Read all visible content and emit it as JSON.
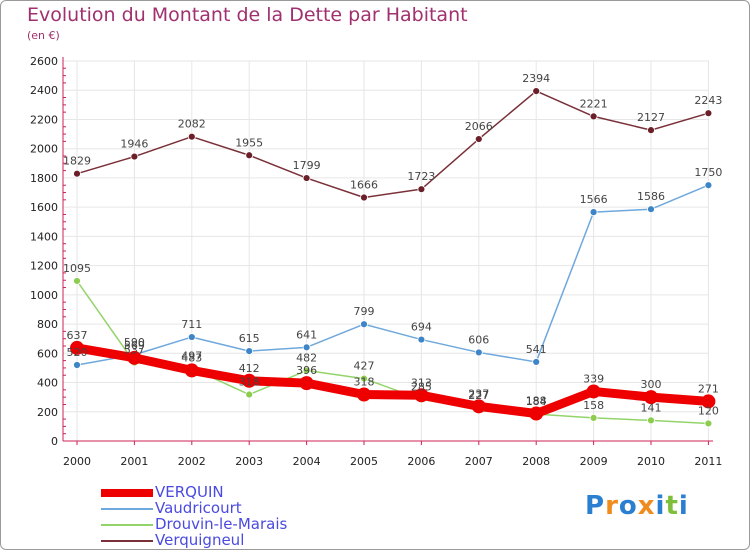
{
  "colors": {
    "title": "#a0306e",
    "axis": "#cc2255",
    "grid": "#e6e6e6",
    "legend_text": "#4a4ae0"
  },
  "logo": {
    "text": "Proxiti",
    "letters": [
      {
        "ch": "P",
        "color": "#2b7fd0"
      },
      {
        "ch": "r",
        "color": "#f08c1e"
      },
      {
        "ch": "o",
        "color": "#2b7fd0"
      },
      {
        "ch": "x",
        "color": "#f08c1e"
      },
      {
        "ch": "i",
        "color": "#2b7fd0"
      },
      {
        "ch": "t",
        "color": "#7dbf3a"
      },
      {
        "ch": "i",
        "color": "#2b7fd0"
      }
    ]
  },
  "chart_data": {
    "type": "line",
    "title": "Evolution du Montant de la Dette par Habitant",
    "subtitle": "(en €)",
    "xlabel": "",
    "ylabel": "",
    "ylim": [
      0,
      2600
    ],
    "y_ticks": [
      0,
      200,
      400,
      600,
      800,
      1000,
      1200,
      1400,
      1600,
      1800,
      2000,
      2200,
      2400,
      2600
    ],
    "categories": [
      "2000",
      "2001",
      "2002",
      "2003",
      "2004",
      "2005",
      "2006",
      "2007",
      "2008",
      "2009",
      "2010",
      "2011"
    ],
    "grid": true,
    "legend_position": "bottom-left",
    "series": [
      {
        "name": "VERQUIN",
        "color": "#ee0000",
        "marker_color": "#ee0000",
        "emphasis": true,
        "values": [
          637,
          569,
          483,
          412,
          396,
          318,
          313,
          237,
          188,
          339,
          300,
          271
        ]
      },
      {
        "name": "Vaudricourt",
        "color": "#6fa8dc",
        "marker_color": "#3d85c6",
        "values": [
          520,
          590,
          711,
          615,
          641,
          799,
          694,
          606,
          541,
          1566,
          1586,
          1750
        ]
      },
      {
        "name": "Drouvin-le-Marais",
        "color": "#93d46a",
        "marker_color": "#8dcc4f",
        "values": [
          1095,
          537,
          497,
          318,
          482,
          427,
          285,
          227,
          184,
          158,
          141,
          120
        ]
      },
      {
        "name": "Verquigneul",
        "color": "#7a3038",
        "marker_color": "#6b1f28",
        "values": [
          1829,
          1946,
          2082,
          1955,
          1799,
          1666,
          1723,
          2066,
          2394,
          2221,
          2127,
          2243
        ]
      }
    ]
  }
}
